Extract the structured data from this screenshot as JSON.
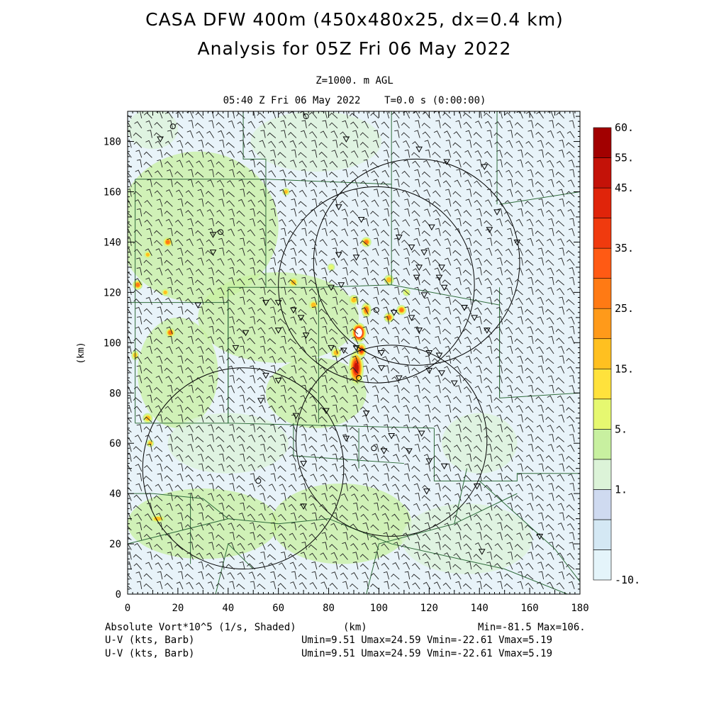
{
  "title_line1": "CASA DFW 400m (450x480x25, dx=0.4 km)",
  "title_line2": "Analysis for 05Z Fri 06 May 2022",
  "level": "Z=1000. m AGL",
  "time_line": "05:40 Z Fri 06 May 2022    T=0.0 s (0:00:00)",
  "footer": {
    "field_label": "Absolute Vort*10^5 (1/s, Shaded)",
    "xunit": "(km)",
    "minmax": "Min=-81.5 Max=106.",
    "barb1_label": "U-V (kts, Barb)",
    "barb1_stats": "Umin=9.51 Umax=24.59 Vmin=-22.61 Vmax=5.19",
    "barb2_label": "U-V (kts, Barb)",
    "barb2_stats": "Umin=9.51 Umax=24.59 Vmin=-22.61 Vmax=5.19"
  },
  "chart_data": {
    "type": "heatmap",
    "xlabel": "",
    "ylabel": "(km)",
    "xlim": [
      0,
      180
    ],
    "ylim": [
      0,
      192
    ],
    "xticks": [
      "0",
      "20",
      "40",
      "60",
      "80",
      "100",
      "120",
      "140",
      "160",
      "180"
    ],
    "yticks": [
      "0",
      "20",
      "40",
      "60",
      "80",
      "100",
      "120",
      "140",
      "160",
      "180"
    ],
    "colorbar": {
      "labels": [
        "-10.",
        "1.",
        "5.",
        "15.",
        "25.",
        "35.",
        "45.",
        "55.",
        "60."
      ],
      "colors": [
        "#e4f4fa",
        "#d4e8f4",
        "#cfdaf0",
        "#dcf3d8",
        "#c8f0a0",
        "#e6f870",
        "#ffe23c",
        "#ffc020",
        "#ff9a1a",
        "#ff7a14",
        "#ff5a14",
        "#f03a0e",
        "#e0240a",
        "#c41208",
        "#a20000"
      ]
    },
    "radars": [
      {
        "x": 99,
        "y": 123,
        "r": 39
      },
      {
        "x": 115,
        "y": 132,
        "r": 41
      },
      {
        "x": 46,
        "y": 50,
        "r": 40
      },
      {
        "x": 105,
        "y": 61,
        "r": 38
      }
    ],
    "vorticity_cells": [
      {
        "x": 92,
        "y": 104,
        "rx": 3,
        "ry": 4,
        "v": 106
      },
      {
        "x": 91,
        "y": 90,
        "rx": 3,
        "ry": 7,
        "v": 58
      },
      {
        "x": 93,
        "y": 97,
        "rx": 2,
        "ry": 3,
        "v": 45
      },
      {
        "x": 95,
        "y": 113,
        "rx": 2,
        "ry": 3,
        "v": 40
      },
      {
        "x": 104,
        "y": 110,
        "rx": 2,
        "ry": 2,
        "v": 35
      },
      {
        "x": 109,
        "y": 113,
        "rx": 2,
        "ry": 2,
        "v": 35
      },
      {
        "x": 95,
        "y": 140,
        "rx": 2,
        "ry": 2,
        "v": 35
      },
      {
        "x": 104,
        "y": 125,
        "rx": 2,
        "ry": 2,
        "v": 30
      },
      {
        "x": 90,
        "y": 117,
        "rx": 2,
        "ry": 2,
        "v": 28
      },
      {
        "x": 74,
        "y": 115,
        "rx": 2,
        "ry": 2,
        "v": 28
      },
      {
        "x": 66,
        "y": 124,
        "rx": 2,
        "ry": 2,
        "v": 25
      },
      {
        "x": 16,
        "y": 140,
        "rx": 2,
        "ry": 2,
        "v": 35
      },
      {
        "x": 4,
        "y": 123,
        "rx": 2,
        "ry": 2,
        "v": 35
      },
      {
        "x": 17,
        "y": 104,
        "rx": 2,
        "ry": 2,
        "v": 35
      },
      {
        "x": 15,
        "y": 120,
        "rx": 1.5,
        "ry": 1.5,
        "v": 30
      },
      {
        "x": 8,
        "y": 135,
        "rx": 1.5,
        "ry": 1.5,
        "v": 30
      },
      {
        "x": 3,
        "y": 95,
        "rx": 1.5,
        "ry": 2,
        "v": 28
      },
      {
        "x": 8,
        "y": 70,
        "rx": 2,
        "ry": 2,
        "v": 30
      },
      {
        "x": 9,
        "y": 60,
        "rx": 1.5,
        "ry": 1.5,
        "v": 25
      },
      {
        "x": 12,
        "y": 30,
        "rx": 3,
        "ry": 1.5,
        "v": 25
      },
      {
        "x": 83,
        "y": 96,
        "rx": 2,
        "ry": 2,
        "v": 28
      },
      {
        "x": 63,
        "y": 160,
        "rx": 1.5,
        "ry": 1.5,
        "v": 25
      },
      {
        "x": 81,
        "y": 130,
        "rx": 1.5,
        "ry": 1.5,
        "v": 22
      },
      {
        "x": 111,
        "y": 120,
        "rx": 1.5,
        "ry": 1.5,
        "v": 20
      }
    ],
    "zones": [
      {
        "x": 28,
        "y": 146,
        "rx": 32,
        "ry": 30,
        "v": 10
      },
      {
        "x": 60,
        "y": 110,
        "rx": 32,
        "ry": 18,
        "v": 10
      },
      {
        "x": 75,
        "y": 80,
        "rx": 20,
        "ry": 14,
        "v": 5
      },
      {
        "x": 20,
        "y": 88,
        "rx": 16,
        "ry": 22,
        "v": 5
      },
      {
        "x": 40,
        "y": 60,
        "rx": 24,
        "ry": 12,
        "v": 3
      },
      {
        "x": 30,
        "y": 28,
        "rx": 30,
        "ry": 14,
        "v": 10
      },
      {
        "x": 85,
        "y": 28,
        "rx": 28,
        "ry": 16,
        "v": 10
      },
      {
        "x": 135,
        "y": 22,
        "rx": 26,
        "ry": 14,
        "v": 3
      },
      {
        "x": 75,
        "y": 180,
        "rx": 26,
        "ry": 12,
        "v": 3
      },
      {
        "x": 10,
        "y": 185,
        "rx": 10,
        "ry": 8,
        "v": 3
      },
      {
        "x": 140,
        "y": 60,
        "rx": 15,
        "ry": 12,
        "v": 3
      }
    ],
    "wind_direction_deg": 210
  }
}
